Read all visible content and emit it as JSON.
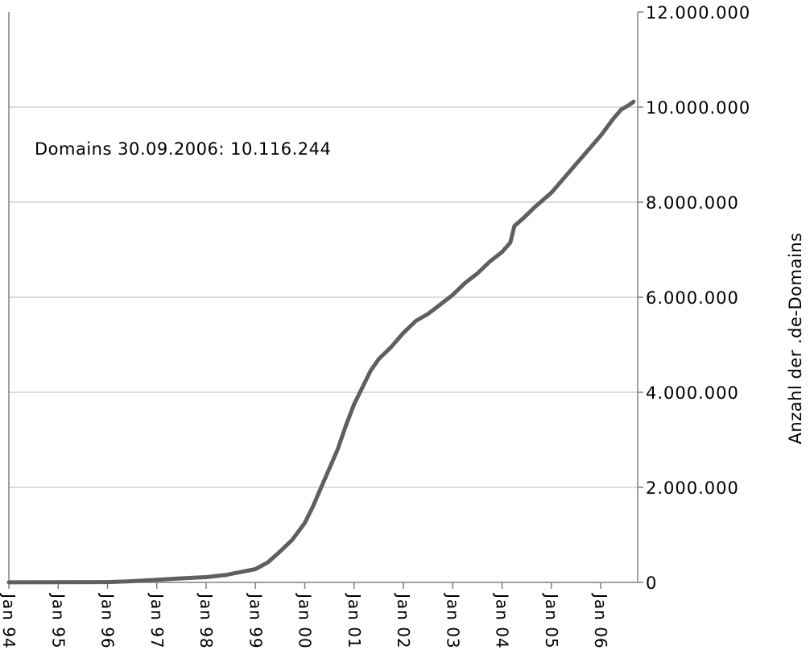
{
  "chart_data": {
    "type": "line",
    "title": "",
    "xlabel": "",
    "ylabel": "Anzahl der .de-Domains",
    "annotation": "Domains 30.09.2006: 10.116.244",
    "y_axis_position": "right",
    "grid": "horizontal",
    "ylim": [
      0,
      12000000
    ],
    "y_ticks": [
      0,
      2000000,
      4000000,
      6000000,
      8000000,
      10000000,
      12000000
    ],
    "y_tick_labels": [
      "0",
      "2.000.000",
      "4.000.000",
      "6.000.000",
      "8.000.000",
      "10.000.000",
      "12.000.000"
    ],
    "x_ticks": [
      "1994-01",
      "1995-01",
      "1996-01",
      "1997-01",
      "1998-01",
      "1999-01",
      "2000-01",
      "2001-01",
      "2002-01",
      "2003-01",
      "2004-01",
      "2005-01",
      "2006-01"
    ],
    "x_tick_labels": [
      "Jan 94",
      "Jan 95",
      "Jan 96",
      "Jan 97",
      "Jan 98",
      "Jan 99",
      "Jan 00",
      "Jan 01",
      "Jan 02",
      "Jan 03",
      "Jan 04",
      "Jan 05",
      "Jan 06"
    ],
    "xlim": [
      "1994-01",
      "2006-10"
    ],
    "line_color": "#5f5f5f",
    "series": [
      {
        "name": "",
        "points": [
          [
            "1994-01",
            1000
          ],
          [
            "1995-01",
            3000
          ],
          [
            "1996-01",
            6000
          ],
          [
            "1996-06",
            20000
          ],
          [
            "1997-01",
            55000
          ],
          [
            "1997-06",
            80000
          ],
          [
            "1998-01",
            110000
          ],
          [
            "1998-06",
            160000
          ],
          [
            "1999-01",
            280000
          ],
          [
            "1999-04",
            420000
          ],
          [
            "1999-07",
            650000
          ],
          [
            "1999-10",
            900000
          ],
          [
            "2000-01",
            1250000
          ],
          [
            "2000-03",
            1600000
          ],
          [
            "2000-05",
            2000000
          ],
          [
            "2000-07",
            2400000
          ],
          [
            "2000-09",
            2800000
          ],
          [
            "2000-11",
            3300000
          ],
          [
            "2001-01",
            3750000
          ],
          [
            "2001-03",
            4100000
          ],
          [
            "2001-05",
            4450000
          ],
          [
            "2001-07",
            4700000
          ],
          [
            "2001-10",
            4950000
          ],
          [
            "2002-01",
            5250000
          ],
          [
            "2002-04",
            5500000
          ],
          [
            "2002-07",
            5650000
          ],
          [
            "2002-10",
            5850000
          ],
          [
            "2003-01",
            6050000
          ],
          [
            "2003-04",
            6300000
          ],
          [
            "2003-07",
            6500000
          ],
          [
            "2003-10",
            6750000
          ],
          [
            "2004-01",
            6950000
          ],
          [
            "2004-03",
            7150000
          ],
          [
            "2004-04",
            7500000
          ],
          [
            "2004-06",
            7650000
          ],
          [
            "2004-09",
            7900000
          ],
          [
            "2005-01",
            8200000
          ],
          [
            "2005-04",
            8500000
          ],
          [
            "2005-07",
            8800000
          ],
          [
            "2005-10",
            9100000
          ],
          [
            "2006-01",
            9400000
          ],
          [
            "2006-04",
            9750000
          ],
          [
            "2006-06",
            9950000
          ],
          [
            "2006-08",
            10050000
          ],
          [
            "2006-09",
            10116244
          ]
        ]
      }
    ]
  }
}
